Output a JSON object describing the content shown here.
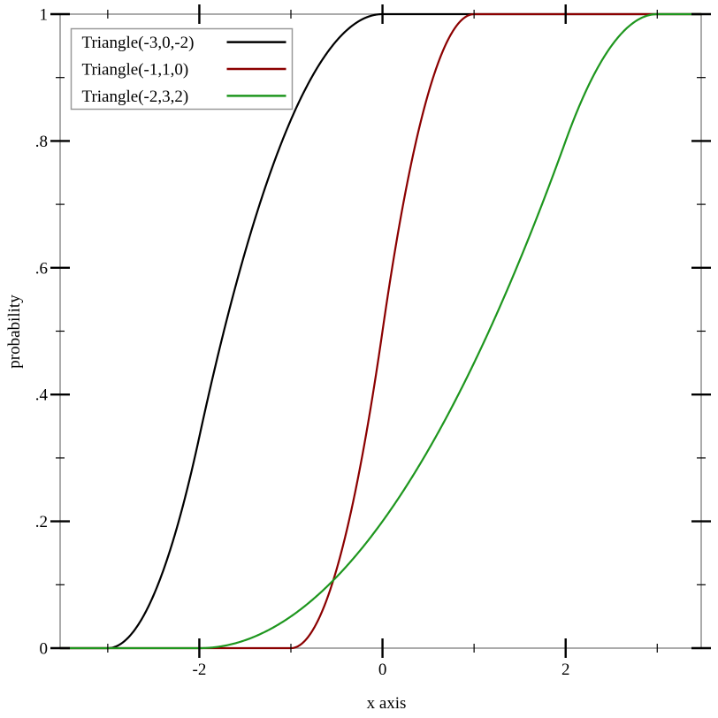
{
  "chart_data": {
    "type": "line",
    "title": "",
    "xlabel": "x axis",
    "ylabel": "probability",
    "xlim": [
      -3.52,
      3.48
    ],
    "ylim": [
      0,
      1
    ],
    "grid": false,
    "legend_position": "top-left",
    "frame_color": "#969696",
    "tick_color": "#000000",
    "legend_border_color": "#999999",
    "legend_background": "#ffffff",
    "x_major_ticks": [
      -2,
      0,
      2
    ],
    "x_tick_labels": [
      "-2",
      "0",
      "2"
    ],
    "x_minor_ticks": [
      -3,
      -1,
      1,
      3
    ],
    "y_major_ticks": [
      0,
      0.2,
      0.4,
      0.6,
      0.8,
      1
    ],
    "y_tick_labels": [
      "0",
      ".2",
      ".4",
      ".6",
      ".8",
      "1"
    ],
    "y_minor_ticks": [
      0.1,
      0.3,
      0.5,
      0.7,
      0.9
    ],
    "series": [
      {
        "name": "Triangle(-3,0,-2)",
        "color": "#000000",
        "distribution": "triangle-cdf",
        "min": -3,
        "max": 0,
        "mode": -2,
        "points": [
          [
            -3.5,
            0
          ],
          [
            -3,
            0
          ],
          [
            -2.5,
            0.083
          ],
          [
            -2,
            0.333
          ],
          [
            -1.5,
            0.625
          ],
          [
            -1,
            0.833
          ],
          [
            -0.5,
            0.958
          ],
          [
            0,
            1
          ],
          [
            3.48,
            1
          ]
        ]
      },
      {
        "name": "Triangle(-1,1,0)",
        "color": "#8b0000",
        "distribution": "triangle-cdf",
        "min": -1,
        "max": 1,
        "mode": 0,
        "points": [
          [
            -3.5,
            0
          ],
          [
            -1,
            0
          ],
          [
            -0.5,
            0.125
          ],
          [
            0,
            0.5
          ],
          [
            0.5,
            0.875
          ],
          [
            1,
            1
          ],
          [
            3.48,
            1
          ]
        ]
      },
      {
        "name": "Triangle(-2,3,2)",
        "color": "#1e961e",
        "distribution": "triangle-cdf",
        "min": -2,
        "max": 3,
        "mode": 2,
        "points": [
          [
            -3.5,
            0
          ],
          [
            -2,
            0
          ],
          [
            -1.5,
            0.013
          ],
          [
            -1,
            0.05
          ],
          [
            -0.5,
            0.113
          ],
          [
            0,
            0.2
          ],
          [
            0.5,
            0.313
          ],
          [
            1,
            0.45
          ],
          [
            1.5,
            0.613
          ],
          [
            2,
            0.8
          ],
          [
            2.5,
            0.95
          ],
          [
            3,
            1
          ],
          [
            3.48,
            1
          ]
        ]
      }
    ]
  }
}
